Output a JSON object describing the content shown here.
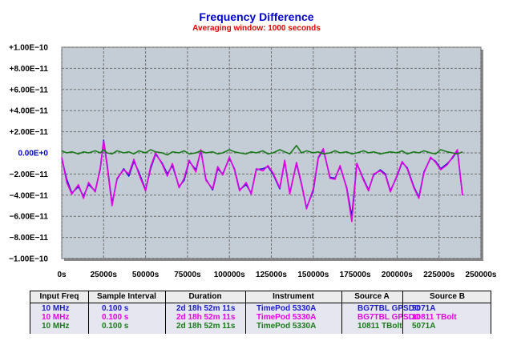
{
  "chart_data": {
    "type": "line",
    "title": "Frequency Difference",
    "subtitle": "Averaging window: 1000 seconds",
    "xlim": [
      0,
      250000
    ],
    "ylim": [
      -1e-10,
      1e-10
    ],
    "x_ticks": [
      {
        "value": 0,
        "label": "0s"
      },
      {
        "value": 25000,
        "label": "25000s"
      },
      {
        "value": 50000,
        "label": "50000s"
      },
      {
        "value": 75000,
        "label": "75000s"
      },
      {
        "value": 100000,
        "label": "100000s"
      },
      {
        "value": 125000,
        "label": "125000s"
      },
      {
        "value": 150000,
        "label": "150000s"
      },
      {
        "value": 175000,
        "label": "175000s"
      },
      {
        "value": 200000,
        "label": "200000s"
      },
      {
        "value": 225000,
        "label": "225000s"
      },
      {
        "value": 250000,
        "label": "250000s"
      }
    ],
    "y_ticks": [
      {
        "value": 1e-10,
        "label": "+1.00E−10"
      },
      {
        "value": 8e-11,
        "label": "+8.00E−11"
      },
      {
        "value": 6e-11,
        "label": "+6.00E−11"
      },
      {
        "value": 4e-11,
        "label": "+4.00E−11"
      },
      {
        "value": 2e-11,
        "label": "+2.00E−11"
      },
      {
        "value": 0,
        "label": "0.00E+0",
        "zero": true
      },
      {
        "value": -2e-11,
        "label": "−2.00E−11"
      },
      {
        "value": -4e-11,
        "label": "−4.00E−11"
      },
      {
        "value": -6e-11,
        "label": "−6.00E−11"
      },
      {
        "value": -8e-11,
        "label": "−8.00E−11"
      },
      {
        "value": -1e-10,
        "label": "−1.00E−10"
      }
    ],
    "grid": true,
    "series": [
      {
        "color": "#1a1acc",
        "x": [
          0,
          3000,
          6000,
          10000,
          13000,
          16000,
          20000,
          23000,
          25000,
          27000,
          30000,
          33000,
          37000,
          40000,
          43000,
          46000,
          50000,
          53000,
          56000,
          60000,
          63000,
          66000,
          70000,
          73000,
          76000,
          80000,
          83000,
          86000,
          90000,
          93000,
          96000,
          100000,
          103000,
          106000,
          110000,
          113000,
          116000,
          120000,
          123000,
          126000,
          130000,
          133000,
          136000,
          140000,
          143000,
          146000,
          150000,
          153000,
          156000,
          160000,
          163000,
          166000,
          170000,
          173000,
          176000,
          180000,
          183000,
          186000,
          190000,
          193000,
          196000,
          200000,
          203000,
          206000,
          210000,
          213000,
          216000,
          220000,
          223000,
          226000,
          230000,
          233000,
          236000,
          239000
        ],
        "values": [
          -5e-12,
          -2.5e-11,
          -3.8e-11,
          -3.2e-11,
          -4.1e-11,
          -3e-11,
          -3.6e-11,
          -1.5e-11,
          1.2e-11,
          -1e-11,
          -4.8e-11,
          -2.5e-11,
          -1.5e-11,
          -2.2e-11,
          -8e-12,
          -1.8e-11,
          -3.5e-11,
          -1.5e-11,
          -1e-12,
          -1e-11,
          -2e-11,
          -1.2e-11,
          -3.2e-11,
          -2.6e-11,
          -8e-12,
          -1.6e-11,
          2e-12,
          -2.5e-11,
          -3.5e-11,
          -1.5e-11,
          -2e-11,
          -5e-12,
          -1.5e-11,
          -3.5e-11,
          -3e-11,
          -3.8e-11,
          -1.6e-11,
          -1.5e-11,
          -1.3e-11,
          -2e-11,
          -3.4e-11,
          -8e-12,
          -3.8e-11,
          -1e-11,
          -3e-11,
          -5.2e-11,
          -3.6e-11,
          -5e-12,
          3e-12,
          -2.3e-11,
          -2.4e-11,
          -1.3e-11,
          -3.3e-11,
          -6e-11,
          -1e-11,
          -2.5e-11,
          -3.5e-11,
          -2.1e-11,
          -1.6e-11,
          -2e-11,
          -3.6e-11,
          -2.2e-11,
          -9e-12,
          -1.4e-11,
          -3.2e-11,
          -4.2e-11,
          -1.8e-11,
          -5e-12,
          -8e-12,
          -1.5e-11,
          -1e-11,
          -5e-12,
          2e-12,
          -4e-11
        ]
      },
      {
        "color": "#e600e6",
        "x": [
          0,
          3000,
          6000,
          10000,
          13000,
          16000,
          20000,
          23000,
          25000,
          27000,
          30000,
          33000,
          37000,
          40000,
          43000,
          46000,
          50000,
          53000,
          56000,
          60000,
          63000,
          66000,
          70000,
          73000,
          76000,
          80000,
          83000,
          86000,
          90000,
          93000,
          96000,
          100000,
          103000,
          106000,
          110000,
          113000,
          116000,
          120000,
          123000,
          126000,
          130000,
          133000,
          136000,
          140000,
          143000,
          146000,
          150000,
          153000,
          156000,
          160000,
          163000,
          166000,
          170000,
          173000,
          176000,
          180000,
          183000,
          186000,
          190000,
          193000,
          196000,
          200000,
          203000,
          206000,
          210000,
          213000,
          216000,
          220000,
          223000,
          226000,
          230000,
          233000,
          236000,
          239000
        ],
        "values": [
          -4e-12,
          -2.8e-11,
          -3.9e-11,
          -3e-11,
          -4.3e-11,
          -2.8e-11,
          -3.7e-11,
          -1.4e-11,
          1.1e-11,
          -1.2e-11,
          -5e-11,
          -2.4e-11,
          -1.6e-11,
          -2e-11,
          -6e-12,
          -2e-11,
          -3.6e-11,
          -1.3e-11,
          0,
          -1.1e-11,
          -2.2e-11,
          -1e-11,
          -3.3e-11,
          -2.4e-11,
          -7e-12,
          -1.8e-11,
          3e-12,
          -2.6e-11,
          -3.4e-11,
          -1.3e-11,
          -2.1e-11,
          -4e-12,
          -1.6e-11,
          -3.6e-11,
          -2.8e-11,
          -3.9e-11,
          -1.5e-11,
          -1.7e-11,
          -1.2e-11,
          -1.9e-11,
          -3.3e-11,
          -7e-12,
          -3.9e-11,
          -9e-12,
          -2.9e-11,
          -5.3e-11,
          -3.4e-11,
          -4e-12,
          4e-12,
          -2.4e-11,
          -2.5e-11,
          -1.2e-11,
          -3.4e-11,
          -6.5e-11,
          -1e-11,
          -2.6e-11,
          -3.6e-11,
          -2e-11,
          -1.7e-11,
          -2.1e-11,
          -3.7e-11,
          -2.1e-11,
          -8e-12,
          -1.5e-11,
          -3.3e-11,
          -4.3e-11,
          -1.9e-11,
          -4e-12,
          -9e-12,
          -1.6e-11,
          -1.1e-11,
          -4e-12,
          3e-12,
          -4e-11
        ]
      },
      {
        "color": "#1a7a1a",
        "x": [
          0,
          3000,
          6000,
          10000,
          13000,
          16000,
          20000,
          23000,
          25000,
          27000,
          30000,
          33000,
          37000,
          40000,
          43000,
          46000,
          50000,
          53000,
          56000,
          60000,
          63000,
          66000,
          70000,
          73000,
          76000,
          80000,
          83000,
          86000,
          90000,
          93000,
          96000,
          100000,
          103000,
          106000,
          110000,
          113000,
          116000,
          120000,
          123000,
          126000,
          130000,
          133000,
          136000,
          140000,
          143000,
          146000,
          150000,
          153000,
          156000,
          160000,
          163000,
          166000,
          170000,
          173000,
          176000,
          180000,
          183000,
          186000,
          190000,
          193000,
          196000,
          200000,
          203000,
          206000,
          210000,
          213000,
          216000,
          220000,
          223000,
          226000,
          230000,
          233000,
          236000,
          239000
        ],
        "values": [
          2e-12,
          0,
          1e-12,
          -1e-12,
          1e-12,
          0,
          2e-12,
          0,
          3e-12,
          0,
          -1e-12,
          2e-12,
          0,
          1e-12,
          -1e-12,
          2e-12,
          0,
          3e-12,
          1e-12,
          0,
          -2e-12,
          1e-12,
          0,
          2e-12,
          -1e-12,
          0,
          2e-12,
          0,
          1e-12,
          -1e-12,
          0,
          3e-12,
          1e-12,
          0,
          -1e-12,
          1e-12,
          0,
          2e-12,
          -1e-12,
          0,
          3e-12,
          1e-12,
          -1e-12,
          7e-12,
          0,
          2e-12,
          0,
          1e-12,
          -1e-12,
          0,
          2e-12,
          0,
          1e-12,
          -1e-12,
          0,
          2e-12,
          0,
          1e-12,
          -1e-12,
          0,
          1e-12,
          0,
          2e-12,
          -1e-12,
          1e-12,
          0,
          2e-12,
          0,
          -1e-12,
          3e-12,
          1e-12,
          0,
          -1e-12,
          1e-12
        ]
      }
    ]
  },
  "table": {
    "headers": [
      "Input Freq",
      "Sample Interval",
      "Duration",
      "Instrument",
      "Source A",
      "Source B"
    ],
    "rows": [
      {
        "color": "#1a1acc",
        "cells": [
          "10 MHz",
          "0.100 s",
          "2d 18h 52m 11s",
          "TimePod 5330A",
          "BG7TBL GPSDO",
          "5071A"
        ]
      },
      {
        "color": "#e600e6",
        "cells": [
          "10 MHz",
          "0.100 s",
          "2d 18h 52m 11s",
          "TimePod 5330A",
          "BG7TBL GPSDO",
          "10811 TBolt"
        ]
      },
      {
        "color": "#1a7a1a",
        "cells": [
          "10 MHz",
          "0.100 s",
          "2d 18h 52m 11s",
          "TimePod 5330A",
          "10811 TBolt",
          "5071A"
        ]
      }
    ]
  }
}
